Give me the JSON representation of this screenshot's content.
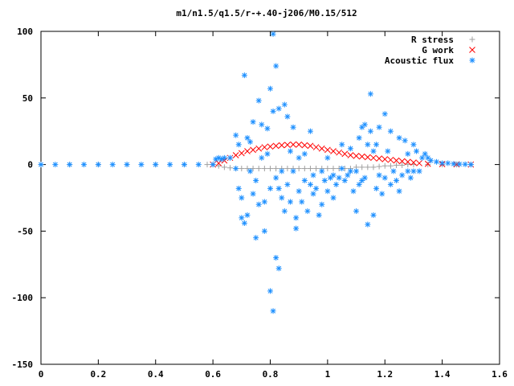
{
  "chart_data": {
    "type": "scatter",
    "title": "m1/n1.5/q1.5/r-+.40-j206/M0.15/512",
    "xlabel": "",
    "ylabel": "",
    "xlim": [
      0,
      1.6
    ],
    "ylim": [
      -150,
      100
    ],
    "x_ticks": [
      "0",
      "0.2",
      "0.4",
      "0.6",
      "0.8",
      "1",
      "1.2",
      "1.4",
      "1.6"
    ],
    "y_ticks": [
      "100",
      "50",
      "0",
      "-50",
      "-100",
      "-150"
    ],
    "grid": false,
    "legend_position": "top-right",
    "series": [
      {
        "name": "R stress",
        "color": "#a0a0a0",
        "marker": "plus",
        "points": [
          [
            0.0,
            0
          ],
          [
            0.1,
            0
          ],
          [
            0.2,
            0
          ],
          [
            0.3,
            0
          ],
          [
            0.4,
            0
          ],
          [
            0.5,
            0
          ],
          [
            0.58,
            0
          ],
          [
            0.6,
            0
          ],
          [
            0.62,
            -1
          ],
          [
            0.64,
            -2
          ],
          [
            0.66,
            -2.5
          ],
          [
            0.68,
            -3
          ],
          [
            0.7,
            -3
          ],
          [
            0.72,
            -3
          ],
          [
            0.74,
            -3
          ],
          [
            0.76,
            -3
          ],
          [
            0.78,
            -3
          ],
          [
            0.8,
            -3
          ],
          [
            0.82,
            -3
          ],
          [
            0.84,
            -3
          ],
          [
            0.86,
            -3
          ],
          [
            0.88,
            -3
          ],
          [
            0.9,
            -3
          ],
          [
            0.92,
            -3
          ],
          [
            0.94,
            -3
          ],
          [
            0.96,
            -3
          ],
          [
            0.98,
            -3
          ],
          [
            1.0,
            -3
          ],
          [
            1.02,
            -3
          ],
          [
            1.04,
            -3
          ],
          [
            1.06,
            -3
          ],
          [
            1.08,
            -3
          ],
          [
            1.1,
            -2
          ],
          [
            1.12,
            -2
          ],
          [
            1.14,
            -2
          ],
          [
            1.16,
            -2
          ],
          [
            1.18,
            -1.5
          ],
          [
            1.2,
            -1
          ],
          [
            1.22,
            -1
          ],
          [
            1.24,
            -0.5
          ],
          [
            1.26,
            -0.5
          ],
          [
            1.28,
            0
          ],
          [
            1.3,
            0
          ],
          [
            1.35,
            0
          ],
          [
            1.4,
            0
          ],
          [
            1.45,
            0
          ],
          [
            1.5,
            0
          ]
        ]
      },
      {
        "name": "G work",
        "color": "#ff0000",
        "marker": "cross",
        "points": [
          [
            0.6,
            0
          ],
          [
            0.62,
            1
          ],
          [
            0.64,
            3
          ],
          [
            0.66,
            5
          ],
          [
            0.68,
            7
          ],
          [
            0.7,
            8.5
          ],
          [
            0.72,
            10
          ],
          [
            0.74,
            11
          ],
          [
            0.76,
            12
          ],
          [
            0.78,
            13
          ],
          [
            0.8,
            13.5
          ],
          [
            0.82,
            14
          ],
          [
            0.84,
            14.5
          ],
          [
            0.86,
            14.8
          ],
          [
            0.88,
            15
          ],
          [
            0.9,
            15
          ],
          [
            0.92,
            14.5
          ],
          [
            0.94,
            14
          ],
          [
            0.96,
            13
          ],
          [
            0.98,
            12
          ],
          [
            1.0,
            11
          ],
          [
            1.02,
            10
          ],
          [
            1.04,
            9
          ],
          [
            1.06,
            8
          ],
          [
            1.08,
            7
          ],
          [
            1.1,
            6.5
          ],
          [
            1.12,
            6
          ],
          [
            1.14,
            5.5
          ],
          [
            1.16,
            5
          ],
          [
            1.18,
            4.5
          ],
          [
            1.2,
            4
          ],
          [
            1.22,
            3.5
          ],
          [
            1.24,
            3
          ],
          [
            1.26,
            2.5
          ],
          [
            1.28,
            2
          ],
          [
            1.3,
            1.5
          ],
          [
            1.32,
            1
          ],
          [
            1.35,
            0.5
          ],
          [
            1.4,
            0.3
          ],
          [
            1.45,
            0.1
          ],
          [
            1.5,
            0
          ]
        ]
      },
      {
        "name": "Acoustic flux",
        "color": "#1e90ff",
        "marker": "star",
        "points": [
          [
            0.0,
            0
          ],
          [
            0.05,
            0
          ],
          [
            0.1,
            0
          ],
          [
            0.15,
            0
          ],
          [
            0.2,
            0
          ],
          [
            0.25,
            0
          ],
          [
            0.3,
            0
          ],
          [
            0.35,
            0
          ],
          [
            0.4,
            0
          ],
          [
            0.45,
            0
          ],
          [
            0.5,
            0
          ],
          [
            0.55,
            0
          ],
          [
            0.6,
            0
          ],
          [
            0.61,
            4
          ],
          [
            0.62,
            5
          ],
          [
            0.63,
            4
          ],
          [
            0.64,
            5
          ],
          [
            0.66,
            5
          ],
          [
            0.68,
            -3
          ],
          [
            0.68,
            22
          ],
          [
            0.69,
            15
          ],
          [
            0.69,
            -18
          ],
          [
            0.7,
            -25
          ],
          [
            0.7,
            -40
          ],
          [
            0.71,
            -44
          ],
          [
            0.71,
            67
          ],
          [
            0.72,
            -38
          ],
          [
            0.72,
            20
          ],
          [
            0.73,
            -5
          ],
          [
            0.73,
            17
          ],
          [
            0.74,
            32
          ],
          [
            0.74,
            -22
          ],
          [
            0.75,
            -55
          ],
          [
            0.75,
            -12
          ],
          [
            0.76,
            48
          ],
          [
            0.76,
            -30
          ],
          [
            0.77,
            5
          ],
          [
            0.77,
            30
          ],
          [
            0.78,
            -50
          ],
          [
            0.78,
            -28
          ],
          [
            0.79,
            27
          ],
          [
            0.79,
            8
          ],
          [
            0.8,
            57
          ],
          [
            0.8,
            -95
          ],
          [
            0.8,
            -18
          ],
          [
            0.81,
            -110
          ],
          [
            0.81,
            98
          ],
          [
            0.81,
            40
          ],
          [
            0.82,
            -70
          ],
          [
            0.82,
            74
          ],
          [
            0.82,
            -10
          ],
          [
            0.83,
            -78
          ],
          [
            0.83,
            42
          ],
          [
            0.83,
            -18
          ],
          [
            0.84,
            -5
          ],
          [
            0.84,
            -25
          ],
          [
            0.85,
            45
          ],
          [
            0.85,
            -35
          ],
          [
            0.86,
            36
          ],
          [
            0.86,
            -15
          ],
          [
            0.87,
            -28
          ],
          [
            0.87,
            10
          ],
          [
            0.88,
            28
          ],
          [
            0.88,
            -5
          ],
          [
            0.89,
            -48
          ],
          [
            0.89,
            -40
          ],
          [
            0.9,
            -20
          ],
          [
            0.9,
            5
          ],
          [
            0.91,
            -28
          ],
          [
            0.92,
            -12
          ],
          [
            0.92,
            8
          ],
          [
            0.93,
            -35
          ],
          [
            0.94,
            25
          ],
          [
            0.94,
            -15
          ],
          [
            0.95,
            -8
          ],
          [
            0.95,
            -22
          ],
          [
            0.96,
            -18
          ],
          [
            0.97,
            -38
          ],
          [
            0.98,
            -30
          ],
          [
            0.98,
            -5
          ],
          [
            0.99,
            -12
          ],
          [
            1.0,
            5
          ],
          [
            1.0,
            -20
          ],
          [
            1.01,
            -10
          ],
          [
            1.02,
            -8
          ],
          [
            1.02,
            -25
          ],
          [
            1.03,
            -15
          ],
          [
            1.04,
            -10
          ],
          [
            1.05,
            -3
          ],
          [
            1.05,
            15
          ],
          [
            1.06,
            -12
          ],
          [
            1.07,
            -8
          ],
          [
            1.08,
            -5
          ],
          [
            1.08,
            12
          ],
          [
            1.09,
            -20
          ],
          [
            1.1,
            -5
          ],
          [
            1.1,
            -35
          ],
          [
            1.11,
            20
          ],
          [
            1.11,
            -15
          ],
          [
            1.12,
            -12
          ],
          [
            1.12,
            28
          ],
          [
            1.13,
            -10
          ],
          [
            1.13,
            30
          ],
          [
            1.14,
            15
          ],
          [
            1.14,
            -45
          ],
          [
            1.15,
            53
          ],
          [
            1.15,
            25
          ],
          [
            1.16,
            -38
          ],
          [
            1.16,
            10
          ],
          [
            1.17,
            -18
          ],
          [
            1.17,
            15
          ],
          [
            1.18,
            -8
          ],
          [
            1.18,
            28
          ],
          [
            1.19,
            -22
          ],
          [
            1.2,
            -10
          ],
          [
            1.2,
            38
          ],
          [
            1.21,
            10
          ],
          [
            1.22,
            -15
          ],
          [
            1.22,
            25
          ],
          [
            1.23,
            -5
          ],
          [
            1.24,
            -12
          ],
          [
            1.25,
            20
          ],
          [
            1.25,
            -20
          ],
          [
            1.26,
            -8
          ],
          [
            1.27,
            18
          ],
          [
            1.28,
            -5
          ],
          [
            1.28,
            8
          ],
          [
            1.29,
            -10
          ],
          [
            1.3,
            15
          ],
          [
            1.3,
            -5
          ],
          [
            1.31,
            10
          ],
          [
            1.32,
            -5
          ],
          [
            1.33,
            5
          ],
          [
            1.34,
            8
          ],
          [
            1.35,
            5
          ],
          [
            1.36,
            3
          ],
          [
            1.38,
            2
          ],
          [
            1.4,
            1
          ],
          [
            1.42,
            1
          ],
          [
            1.44,
            0.5
          ],
          [
            1.46,
            0.3
          ],
          [
            1.48,
            0.2
          ],
          [
            1.5,
            0
          ]
        ]
      }
    ]
  }
}
